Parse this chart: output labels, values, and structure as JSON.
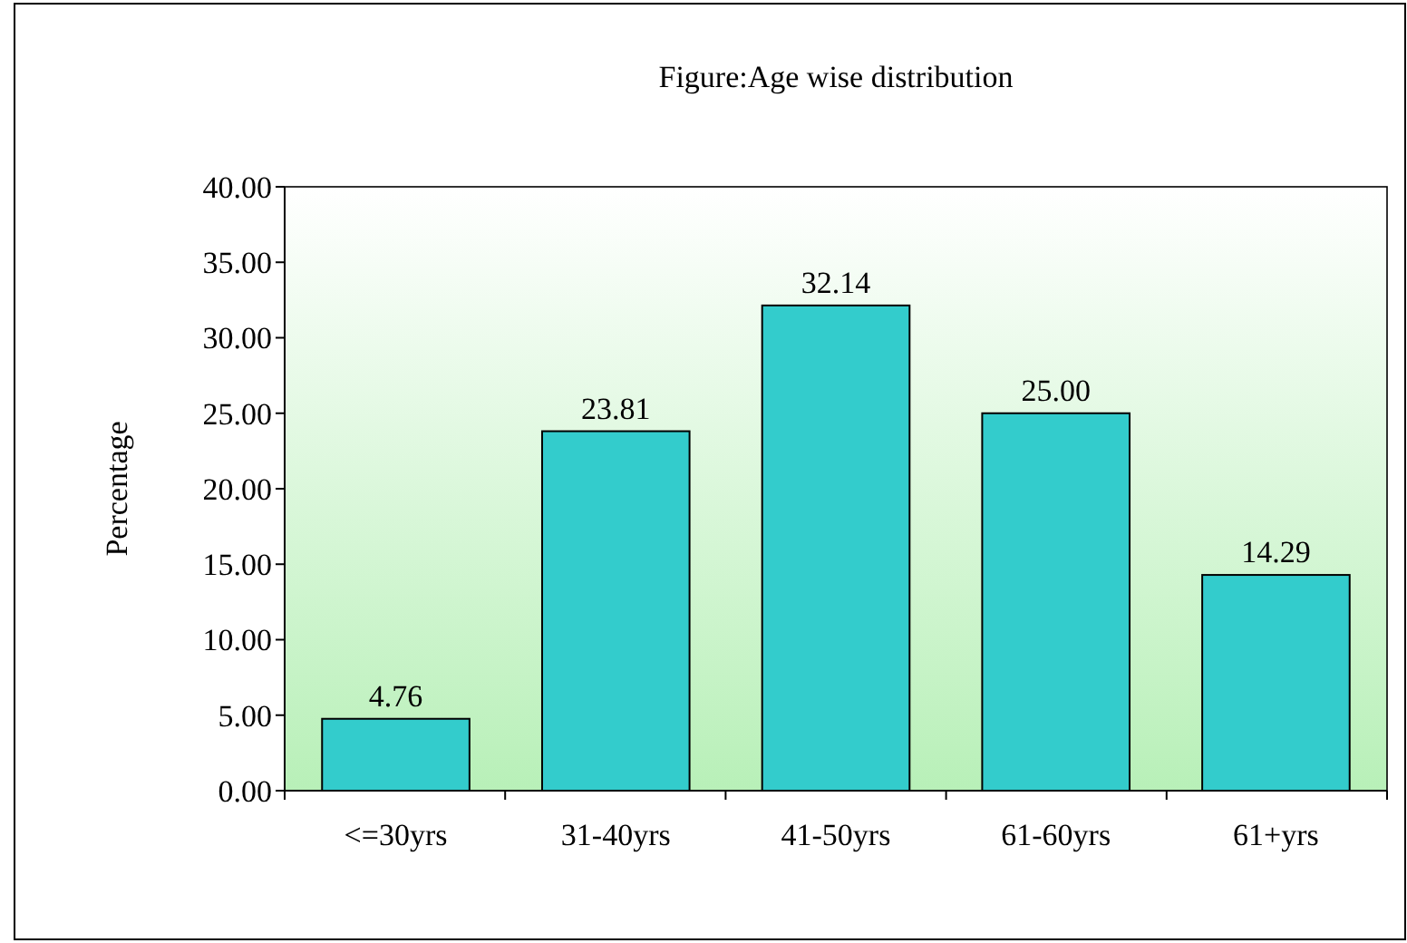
{
  "chart_data": {
    "type": "bar",
    "title": "Figure:Age wise distribution",
    "ylabel": "Percentage",
    "categories": [
      "<=30yrs",
      "31-40yrs",
      "41-50yrs",
      "61-60yrs",
      "61+yrs"
    ],
    "values": [
      4.76,
      23.81,
      32.14,
      25.0,
      14.29
    ],
    "value_labels": [
      "4.76",
      "23.81",
      "32.14",
      "25.00",
      "14.29"
    ],
    "color": "#33cccc",
    "ylim": [
      0,
      40
    ],
    "yticks": [
      {
        "value": 0,
        "label": "0.00"
      },
      {
        "value": 5,
        "label": "5.00"
      },
      {
        "value": 10,
        "label": "10.00"
      },
      {
        "value": 15,
        "label": "15.00"
      },
      {
        "value": 20,
        "label": "20.00"
      },
      {
        "value": 25,
        "label": "25.00"
      },
      {
        "value": 30,
        "label": "30.00"
      },
      {
        "value": 35,
        "label": "35.00"
      },
      {
        "value": 40,
        "label": "40.00"
      }
    ],
    "grid": false
  }
}
